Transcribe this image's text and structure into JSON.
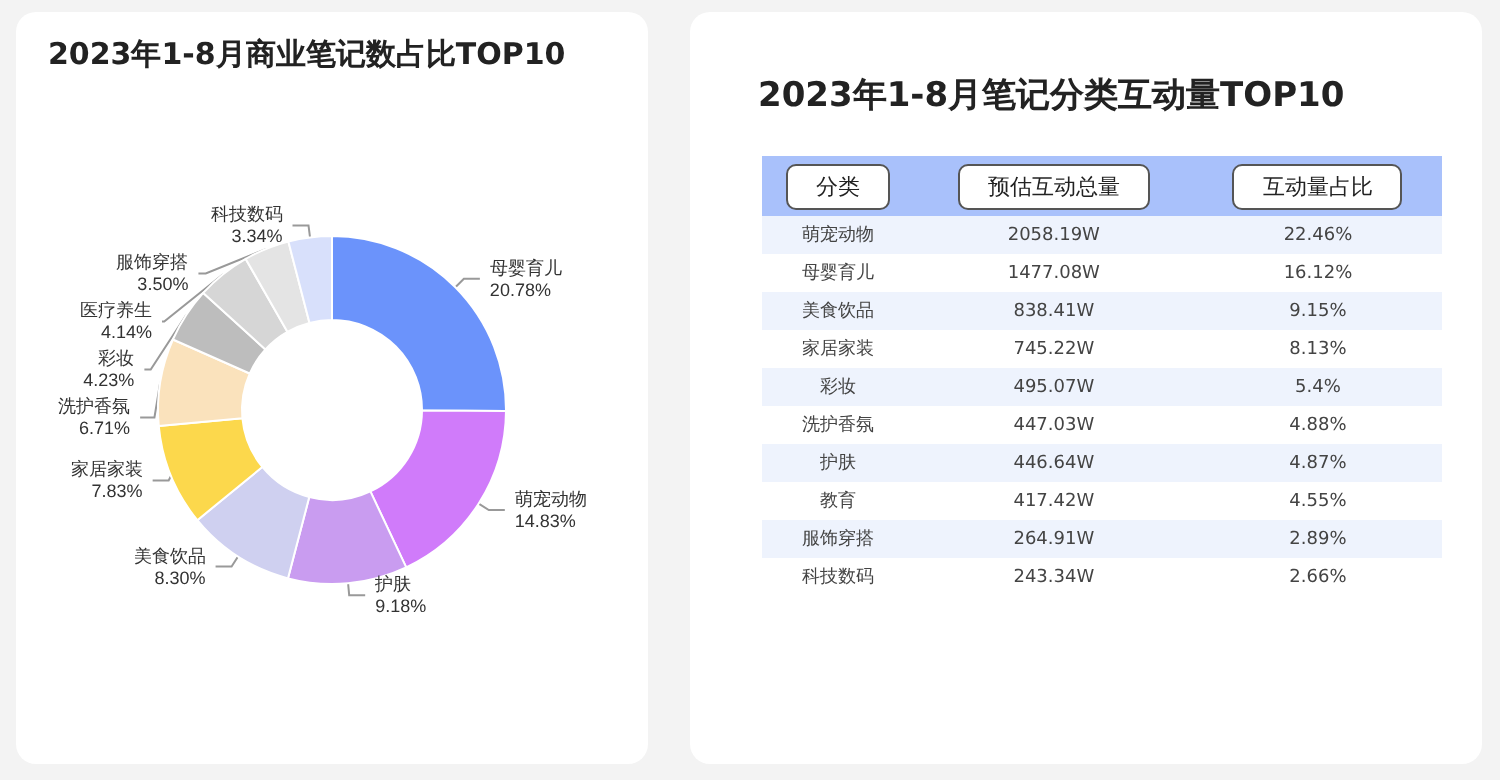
{
  "chart_data": [
    {
      "type": "donut",
      "title": "2023年1-8月商业笔记数占比TOP10",
      "categories": [
        "母婴育儿",
        "萌宠动物",
        "护肤",
        "美食饮品",
        "家居家装",
        "洗护香氛",
        "彩妆",
        "医疗养生",
        "服饰穿搭",
        "科技数码"
      ],
      "values": [
        20.78,
        14.83,
        9.18,
        8.3,
        7.83,
        6.71,
        4.23,
        4.14,
        3.5,
        3.34
      ],
      "value_labels": [
        "20.78%",
        "14.83%",
        "9.18%",
        "8.30%",
        "7.83%",
        "6.71%",
        "4.23%",
        "4.14%",
        "3.50%",
        "3.34%"
      ],
      "colors": [
        "#6b93fb",
        "#d07bfa",
        "#c99cf0",
        "#cfd0f0",
        "#fcd84c",
        "#fae2bc",
        "#bdbdbd",
        "#d6d6d6",
        "#e4e4e4",
        "#d8e0fb"
      ]
    },
    {
      "type": "other",
      "title": "2023年1-8月笔记分类互动量TOP10",
      "annotations": [
        "分类"
      ],
      "categories": [
        "萌宠动物",
        "母婴育儿",
        "美食饮品",
        "家居家装",
        "彩妆",
        "洗护香氛",
        "护肤",
        "教育",
        "服饰穿搭",
        "科技数码"
      ],
      "series": [
        {
          "name": "预估互动总量",
          "values": [
            2058.19,
            1477.08,
            838.41,
            745.22,
            495.07,
            447.03,
            446.64,
            417.42,
            264.91,
            243.34
          ],
          "value_labels": [
            "2058.19W",
            "1477.08W",
            "838.41W",
            "745.22W",
            "495.07W",
            "447.03W",
            "446.64W",
            "417.42W",
            "264.91W",
            "243.34W"
          ]
        },
        {
          "name": "互动量占比",
          "values": [
            22.46,
            16.12,
            9.15,
            8.13,
            5.4,
            4.88,
            4.87,
            4.55,
            2.89,
            2.66
          ],
          "value_labels": [
            "22.46%",
            "16.12%",
            "9.15%",
            "8.13%",
            "5.4%",
            "4.88%",
            "4.87%",
            "4.55%",
            "2.89%",
            "2.66%"
          ]
        }
      ]
    }
  ]
}
